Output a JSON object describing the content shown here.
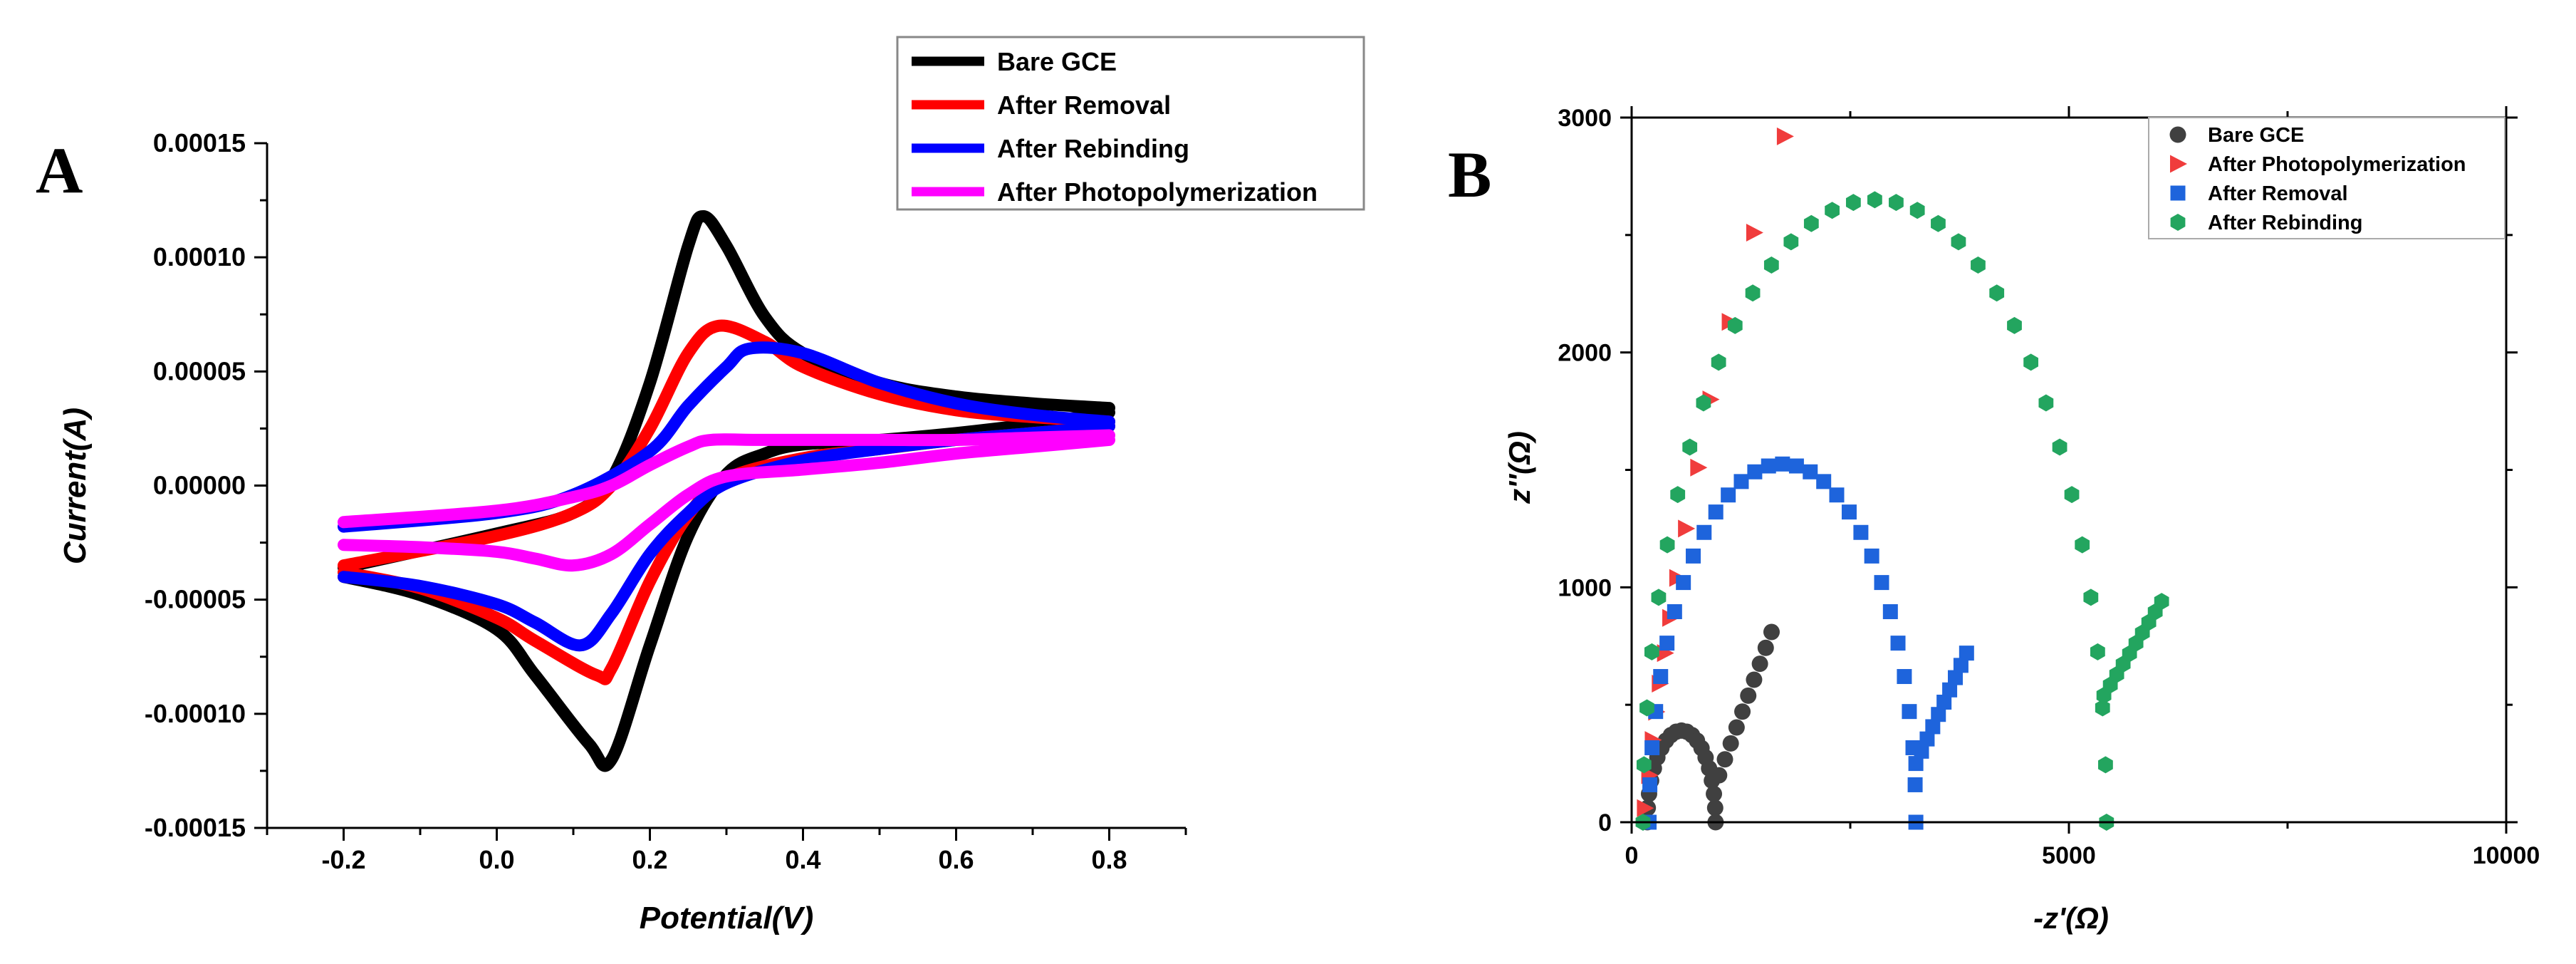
{
  "chart_data": [
    {
      "panel": "A",
      "type": "line",
      "title": "",
      "xlabel": "Potential(V)",
      "ylabel": "Current(A)",
      "xlim": [
        -0.3,
        0.9
      ],
      "ylim": [
        -0.00015,
        0.00015
      ],
      "xticks": [
        -0.2,
        0.0,
        0.2,
        0.4,
        0.6,
        0.8
      ],
      "xtick_labels": [
        "-0.2",
        "0.0",
        "0.2",
        "0.4",
        "0.6",
        "0.8"
      ],
      "yticks": [
        -0.00015,
        -0.0001,
        -5e-05,
        0,
        5e-05,
        0.0001,
        0.00015
      ],
      "ytick_labels": [
        "-0.00015",
        "-0.00010",
        "-0.00005",
        "0.00000",
        "0.00005",
        "0.00010",
        "0.00015"
      ],
      "grid": false,
      "legend_position": "top-right (outside)",
      "series": [
        {
          "name": "Bare GCE",
          "color": "#000000",
          "anodic": [
            [
              -0.2,
              -3.6e-05
            ],
            [
              0.0,
              -2.1e-05
            ],
            [
              0.1,
              -1.2e-05
            ],
            [
              0.15,
              3e-06
            ],
            [
              0.2,
              4.5e-05
            ],
            [
              0.25,
              0.000105
            ],
            [
              0.27,
              0.000118
            ],
            [
              0.3,
              0.000105
            ],
            [
              0.35,
              7.4e-05
            ],
            [
              0.4,
              5.8e-05
            ],
            [
              0.5,
              4.5e-05
            ],
            [
              0.6,
              3.9e-05
            ],
            [
              0.7,
              3.6e-05
            ],
            [
              0.8,
              3.4e-05
            ]
          ],
          "cathodic": [
            [
              0.8,
              3.2e-05
            ],
            [
              0.7,
              2.7e-05
            ],
            [
              0.6,
              2.3e-05
            ],
            [
              0.5,
              2e-05
            ],
            [
              0.4,
              1.8e-05
            ],
            [
              0.35,
              1.4e-05
            ],
            [
              0.3,
              5e-06
            ],
            [
              0.25,
              -2.2e-05
            ],
            [
              0.2,
              -7e-05
            ],
            [
              0.15,
              -0.00012
            ],
            [
              0.12,
              -0.000113
            ],
            [
              0.05,
              -8.3e-05
            ],
            [
              0.0,
              -6.3e-05
            ],
            [
              -0.1,
              -4.8e-05
            ],
            [
              -0.2,
              -4e-05
            ]
          ]
        },
        {
          "name": "After Removal",
          "color": "#ff0000",
          "anodic": [
            [
              -0.2,
              -3.5e-05
            ],
            [
              0.0,
              -2.2e-05
            ],
            [
              0.1,
              -1.2e-05
            ],
            [
              0.15,
              0.0
            ],
            [
              0.2,
              2.5e-05
            ],
            [
              0.25,
              5.8e-05
            ],
            [
              0.29,
              7e-05
            ],
            [
              0.35,
              6.3e-05
            ],
            [
              0.4,
              5.2e-05
            ],
            [
              0.5,
              4e-05
            ],
            [
              0.6,
              3.3e-05
            ],
            [
              0.7,
              3e-05
            ],
            [
              0.8,
              2.8e-05
            ]
          ],
          "cathodic": [
            [
              0.8,
              2.6e-05
            ],
            [
              0.7,
              2.3e-05
            ],
            [
              0.6,
              2e-05
            ],
            [
              0.5,
              1.6e-05
            ],
            [
              0.4,
              1.2e-05
            ],
            [
              0.3,
              3e-06
            ],
            [
              0.25,
              -1.3e-05
            ],
            [
              0.2,
              -4.2e-05
            ],
            [
              0.15,
              -8e-05
            ],
            [
              0.13,
              -8.3e-05
            ],
            [
              0.05,
              -6.8e-05
            ],
            [
              0.0,
              -5.8e-05
            ],
            [
              -0.1,
              -4.5e-05
            ],
            [
              -0.2,
              -3.8e-05
            ]
          ]
        },
        {
          "name": "After Rebinding",
          "color": "#0000ff",
          "anodic": [
            [
              -0.2,
              -1.8e-05
            ],
            [
              0.0,
              -1.2e-05
            ],
            [
              0.1,
              -4e-06
            ],
            [
              0.2,
              1.5e-05
            ],
            [
              0.25,
              3.5e-05
            ],
            [
              0.3,
              5.2e-05
            ],
            [
              0.33,
              6e-05
            ],
            [
              0.4,
              5.8e-05
            ],
            [
              0.5,
              4.5e-05
            ],
            [
              0.6,
              3.6e-05
            ],
            [
              0.7,
              3.1e-05
            ],
            [
              0.8,
              2.8e-05
            ]
          ],
          "cathodic": [
            [
              0.8,
              2.6e-05
            ],
            [
              0.7,
              2.3e-05
            ],
            [
              0.6,
              2e-05
            ],
            [
              0.5,
              1.6e-05
            ],
            [
              0.4,
              1.1e-05
            ],
            [
              0.3,
              1e-06
            ],
            [
              0.25,
              -1.2e-05
            ],
            [
              0.2,
              -3e-05
            ],
            [
              0.15,
              -5.6e-05
            ],
            [
              0.11,
              -7e-05
            ],
            [
              0.05,
              -6e-05
            ],
            [
              0.0,
              -5.2e-05
            ],
            [
              -0.1,
              -4.4e-05
            ],
            [
              -0.2,
              -4e-05
            ]
          ]
        },
        {
          "name": "After Photopolymerization",
          "color": "#ff00ff",
          "anodic": [
            [
              -0.2,
              -1.6e-05
            ],
            [
              0.0,
              -1.1e-05
            ],
            [
              0.1,
              -5e-06
            ],
            [
              0.15,
              0.0
            ],
            [
              0.2,
              9e-06
            ],
            [
              0.25,
              1.7e-05
            ],
            [
              0.28,
              2e-05
            ],
            [
              0.35,
              2e-05
            ],
            [
              0.5,
              2e-05
            ],
            [
              0.6,
              2e-05
            ],
            [
              0.7,
              2.1e-05
            ],
            [
              0.8,
              2.2e-05
            ]
          ],
          "cathodic": [
            [
              0.8,
              2e-05
            ],
            [
              0.7,
              1.7e-05
            ],
            [
              0.6,
              1.4e-05
            ],
            [
              0.5,
              1e-05
            ],
            [
              0.4,
              7e-06
            ],
            [
              0.3,
              4e-06
            ],
            [
              0.25,
              -4e-06
            ],
            [
              0.2,
              -1.7e-05
            ],
            [
              0.15,
              -3e-05
            ],
            [
              0.1,
              -3.5e-05
            ],
            [
              0.05,
              -3.2e-05
            ],
            [
              0.0,
              -2.9e-05
            ],
            [
              -0.1,
              -2.7e-05
            ],
            [
              -0.2,
              -2.6e-05
            ]
          ]
        }
      ]
    },
    {
      "panel": "B",
      "type": "scatter",
      "title": "",
      "xlabel": "-z'(Ω)",
      "ylabel": "z''(Ω)",
      "xlim": [
        0,
        10000
      ],
      "ylim": [
        0,
        3000
      ],
      "xticks": [
        0,
        5000,
        10000
      ],
      "xtick_labels": [
        "0",
        "5000",
        "10000"
      ],
      "yticks": [
        0,
        1000,
        2000,
        3000
      ],
      "ytick_labels": [
        "0",
        "1000",
        "2000",
        "3000"
      ],
      "grid": false,
      "legend_position": "top-right (inside)",
      "series": [
        {
          "name": "Bare GCE",
          "marker": "circle",
          "color": "#404040",
          "arc": {
            "r0": 180,
            "r_ct": 780,
            "n": 20
          },
          "tail": [
            [
              1000,
              200
            ],
            [
              1600,
              810
            ]
          ]
        },
        {
          "name": "After Photopolymerization",
          "marker": "triangle-right",
          "color": "#f03c3c",
          "points": [
            [
              150,
              60
            ],
            [
              200,
              200
            ],
            [
              240,
              350
            ],
            [
              280,
              470
            ],
            [
              320,
              590
            ],
            [
              380,
              720
            ],
            [
              440,
              870
            ],
            [
              520,
              1040
            ],
            [
              620,
              1250
            ],
            [
              760,
              1510
            ],
            [
              900,
              1800
            ],
            [
              1120,
              2130
            ],
            [
              1400,
              2510
            ],
            [
              1750,
              2920
            ]
          ]
        },
        {
          "name": "After Removal",
          "marker": "square",
          "color": "#1e64dc",
          "arc": {
            "r0": 200,
            "r_ct": 3050,
            "n": 30
          },
          "tail": [
            [
              3250,
              250
            ],
            [
              3830,
              720
            ]
          ]
        },
        {
          "name": "After Rebinding",
          "marker": "hexagon",
          "color": "#23a55f",
          "arc": {
            "r0": 130,
            "r_ct": 5300,
            "n": 34
          },
          "tail": [
            [
              5400,
              540
            ],
            [
              6060,
              940
            ]
          ]
        }
      ]
    }
  ]
}
